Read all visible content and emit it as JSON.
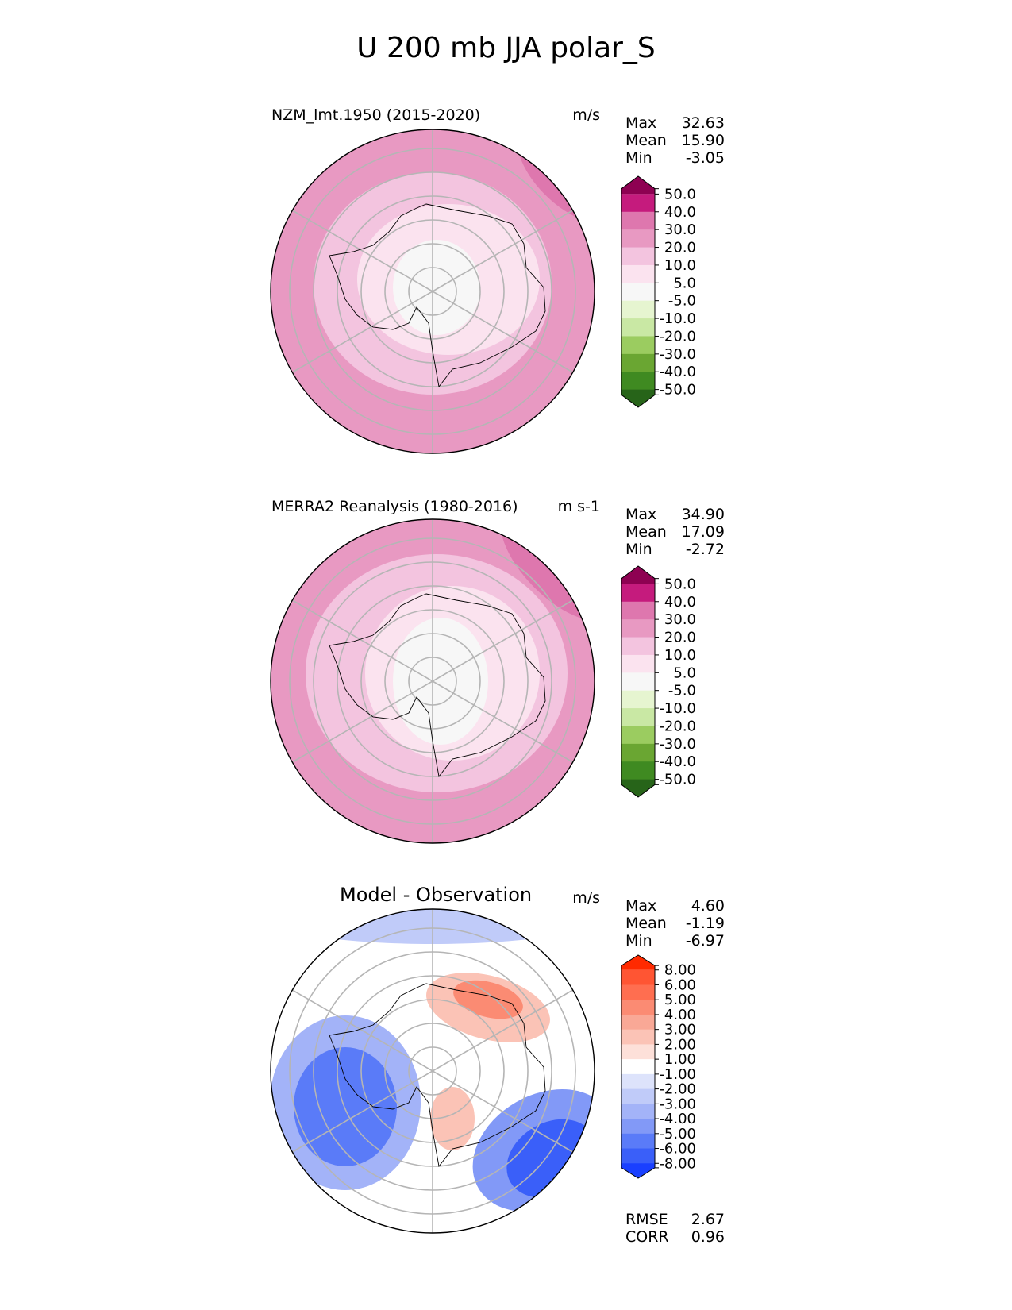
{
  "figure_title": "U 200 mb JJA polar_S",
  "chart_data": [
    {
      "type": "polar-contour-map",
      "title": "NZM_lmt.1950 (2015-2020)",
      "units": "m/s",
      "stats": {
        "max_label": "Max",
        "max": "32.63",
        "mean_label": "Mean",
        "mean": "15.90",
        "min_label": "Min",
        "min": "-3.05"
      },
      "colorbar": {
        "ticks": [
          "50.0",
          "40.0",
          "30.0",
          "20.0",
          "10.0",
          "5.0",
          "-5.0",
          "-10.0",
          "-20.0",
          "-30.0",
          "-40.0",
          "-50.0"
        ],
        "colors": [
          "#8e0152",
          "#c51b7d",
          "#de77ae",
          "#e899c2",
          "#f3c4df",
          "#fbe3ef",
          "#f7f7f7",
          "#e6f5d0",
          "#c9e8a4",
          "#9bcc60",
          "#6aa632",
          "#3f8a21",
          "#276419"
        ],
        "extend": "both"
      },
      "field_levels": [
        {
          "range": "20-30",
          "color": "#e899c2"
        },
        {
          "range": "10-20",
          "color": "#f3c4df"
        },
        {
          "range": "5-10",
          "color": "#fbe3ef"
        },
        {
          "range": "-5-5",
          "color": "#f7f7f7"
        },
        {
          "range": "30-40",
          "color": "#de77ae"
        }
      ]
    },
    {
      "type": "polar-contour-map",
      "title": "MERRA2 Reanalysis (1980-2016)",
      "units": "m s-1",
      "stats": {
        "max_label": "Max",
        "max": "34.90",
        "mean_label": "Mean",
        "mean": "17.09",
        "min_label": "Min",
        "min": "-2.72"
      },
      "colorbar": {
        "ticks": [
          "50.0",
          "40.0",
          "30.0",
          "20.0",
          "10.0",
          "5.0",
          "-5.0",
          "-10.0",
          "-20.0",
          "-30.0",
          "-40.0",
          "-50.0"
        ],
        "colors": [
          "#8e0152",
          "#c51b7d",
          "#de77ae",
          "#e899c2",
          "#f3c4df",
          "#fbe3ef",
          "#f7f7f7",
          "#e6f5d0",
          "#c9e8a4",
          "#9bcc60",
          "#6aa632",
          "#3f8a21",
          "#276419"
        ],
        "extend": "both"
      }
    },
    {
      "type": "polar-contour-map",
      "title": "Model - Observation",
      "units": "m/s",
      "stats": {
        "max_label": "Max",
        "max": "4.60",
        "mean_label": "Mean",
        "mean": "-1.19",
        "min_label": "Min",
        "min": "-6.97"
      },
      "colorbar": {
        "ticks": [
          "8.00",
          "6.00",
          "5.00",
          "4.00",
          "3.00",
          "2.00",
          "1.00",
          "-1.00",
          "-2.00",
          "-3.00",
          "-4.00",
          "-5.00",
          "-6.00",
          "-8.00"
        ],
        "colors": [
          "#ff2a00",
          "#ff5533",
          "#ff6e50",
          "#fb8b73",
          "#f9a896",
          "#fbc3b6",
          "#fde0d9",
          "#ffffff",
          "#dde3fb",
          "#c0cbf9",
          "#a3b3f8",
          "#8299f7",
          "#5a7bf8",
          "#3a5ff9",
          "#1a40ff"
        ],
        "extend": "both"
      },
      "metrics": {
        "rmse_label": "RMSE",
        "rmse": "2.67",
        "corr_label": "CORR",
        "corr": "0.96"
      }
    }
  ]
}
